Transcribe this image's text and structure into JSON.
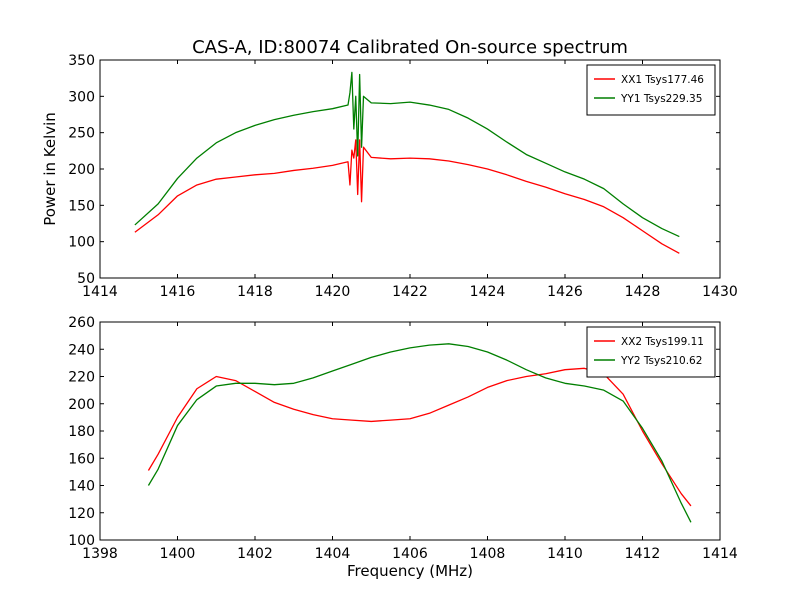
{
  "chart_data": [
    {
      "type": "line",
      "title": "CAS-A, ID:80074 Calibrated On-source spectrum",
      "xlabel": "",
      "ylabel": "Power in Kelvin",
      "xlim": [
        1414,
        1430
      ],
      "ylim": [
        50,
        350
      ],
      "xticks": [
        1414,
        1416,
        1418,
        1420,
        1422,
        1424,
        1426,
        1428,
        1430
      ],
      "yticks": [
        50,
        100,
        150,
        200,
        250,
        300,
        350
      ],
      "legend_position": "top-right",
      "grid": false,
      "series": [
        {
          "name": "XX1 Tsys177.46",
          "color": "#ff0000",
          "x": [
            1414.9,
            1415.5,
            1416.0,
            1416.5,
            1417.0,
            1417.5,
            1418.0,
            1418.5,
            1419.0,
            1419.5,
            1420.0,
            1420.4,
            1420.45,
            1420.5,
            1420.55,
            1420.6,
            1420.65,
            1420.7,
            1420.75,
            1420.8,
            1421.0,
            1421.5,
            1422.0,
            1422.5,
            1423.0,
            1423.5,
            1424.0,
            1424.5,
            1425.0,
            1425.5,
            1426.0,
            1426.5,
            1427.0,
            1427.5,
            1428.0,
            1428.5,
            1428.95
          ],
          "y": [
            113,
            137,
            163,
            178,
            186,
            189,
            192,
            194,
            198,
            201,
            205,
            210,
            178,
            226,
            215,
            240,
            165,
            240,
            155,
            230,
            216,
            214,
            215,
            214,
            211,
            206,
            200,
            192,
            183,
            175,
            166,
            158,
            148,
            133,
            115,
            97,
            84
          ]
        },
        {
          "name": "YY1 Tsys229.35",
          "color": "#007f00",
          "x": [
            1414.9,
            1415.5,
            1416.0,
            1416.5,
            1417.0,
            1417.5,
            1418.0,
            1418.5,
            1419.0,
            1419.5,
            1420.0,
            1420.4,
            1420.45,
            1420.5,
            1420.55,
            1420.6,
            1420.65,
            1420.7,
            1420.75,
            1420.8,
            1421.0,
            1421.5,
            1422.0,
            1422.5,
            1423.0,
            1423.5,
            1424.0,
            1424.5,
            1425.0,
            1425.5,
            1426.0,
            1426.5,
            1427.0,
            1427.5,
            1428.0,
            1428.5,
            1428.95
          ],
          "y": [
            123,
            152,
            187,
            215,
            236,
            250,
            260,
            268,
            274,
            279,
            283,
            288,
            305,
            333,
            255,
            300,
            218,
            330,
            230,
            300,
            291,
            290,
            292,
            288,
            282,
            270,
            255,
            237,
            220,
            208,
            196,
            186,
            173,
            152,
            133,
            118,
            107
          ]
        }
      ]
    },
    {
      "type": "line",
      "title": "",
      "xlabel": "Frequency (MHz)",
      "ylabel": "",
      "xlim": [
        1398,
        1414
      ],
      "ylim": [
        100,
        260
      ],
      "xticks": [
        1398,
        1400,
        1402,
        1404,
        1406,
        1408,
        1410,
        1412,
        1414
      ],
      "yticks": [
        100,
        120,
        140,
        160,
        180,
        200,
        220,
        240,
        260
      ],
      "legend_position": "top-right",
      "grid": false,
      "series": [
        {
          "name": "XX2 Tsys199.11",
          "color": "#ff0000",
          "x": [
            1399.25,
            1399.5,
            1400.0,
            1400.5,
            1401.0,
            1401.5,
            1402.0,
            1402.5,
            1403.0,
            1403.5,
            1404.0,
            1404.5,
            1405.0,
            1405.5,
            1406.0,
            1406.5,
            1407.0,
            1407.5,
            1408.0,
            1408.5,
            1409.0,
            1409.5,
            1410.0,
            1410.5,
            1411.0,
            1411.5,
            1412.0,
            1412.5,
            1413.0,
            1413.25
          ],
          "y": [
            151,
            163,
            190,
            211,
            220,
            217,
            209,
            201,
            196,
            192,
            189,
            188,
            187,
            188,
            189,
            193,
            199,
            205,
            212,
            217,
            220,
            222,
            225,
            226,
            222,
            207,
            180,
            156,
            134,
            125
          ]
        },
        {
          "name": "YY2 Tsys210.62",
          "color": "#007f00",
          "x": [
            1399.25,
            1399.5,
            1400.0,
            1400.5,
            1401.0,
            1401.5,
            1402.0,
            1402.5,
            1403.0,
            1403.5,
            1404.0,
            1404.5,
            1405.0,
            1405.5,
            1406.0,
            1406.5,
            1407.0,
            1407.5,
            1408.0,
            1408.5,
            1409.0,
            1409.5,
            1410.0,
            1410.5,
            1411.0,
            1411.5,
            1412.0,
            1412.5,
            1413.0,
            1413.25
          ],
          "y": [
            140,
            152,
            184,
            203,
            213,
            215,
            215,
            214,
            215,
            219,
            224,
            229,
            234,
            238,
            241,
            243,
            244,
            242,
            238,
            232,
            225,
            219,
            215,
            213,
            210,
            202,
            182,
            158,
            127,
            113
          ]
        }
      ]
    }
  ]
}
